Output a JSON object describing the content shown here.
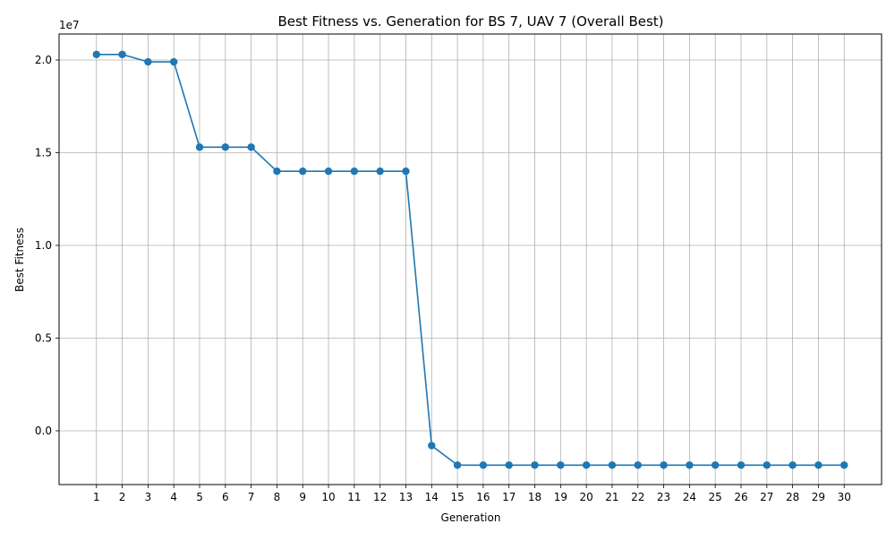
{
  "chart_data": {
    "type": "line",
    "title": "Best Fitness vs. Generation for BS 7, UAV 7 (Overall Best)",
    "xlabel": "Generation",
    "ylabel": "Best Fitness",
    "y_offset_label": "1e7",
    "x": [
      1,
      2,
      3,
      4,
      5,
      6,
      7,
      8,
      9,
      10,
      11,
      12,
      13,
      14,
      15,
      16,
      17,
      18,
      19,
      20,
      21,
      22,
      23,
      24,
      25,
      26,
      27,
      28,
      29,
      30
    ],
    "xlim": [
      -0.45,
      31.45
    ],
    "yticks": [
      0.0,
      0.5,
      1.0,
      1.5,
      2.0
    ],
    "ytick_labels": [
      "0.0",
      "0.5",
      "1.0",
      "1.5",
      "2.0"
    ],
    "ylim": [
      -0.29,
      2.14
    ],
    "grid": true,
    "marker": "circle",
    "color": "#1f77b4",
    "series": [
      {
        "values": [
          2.03,
          2.03,
          1.99,
          1.99,
          1.53,
          1.53,
          1.53,
          1.4,
          1.4,
          1.4,
          1.4,
          1.4,
          1.4,
          -0.08,
          -0.185,
          -0.185,
          -0.185,
          -0.185,
          -0.185,
          -0.185,
          -0.185,
          -0.185,
          -0.185,
          -0.185,
          -0.185,
          -0.185,
          -0.185,
          -0.185,
          -0.185,
          -0.185
        ]
      }
    ]
  }
}
